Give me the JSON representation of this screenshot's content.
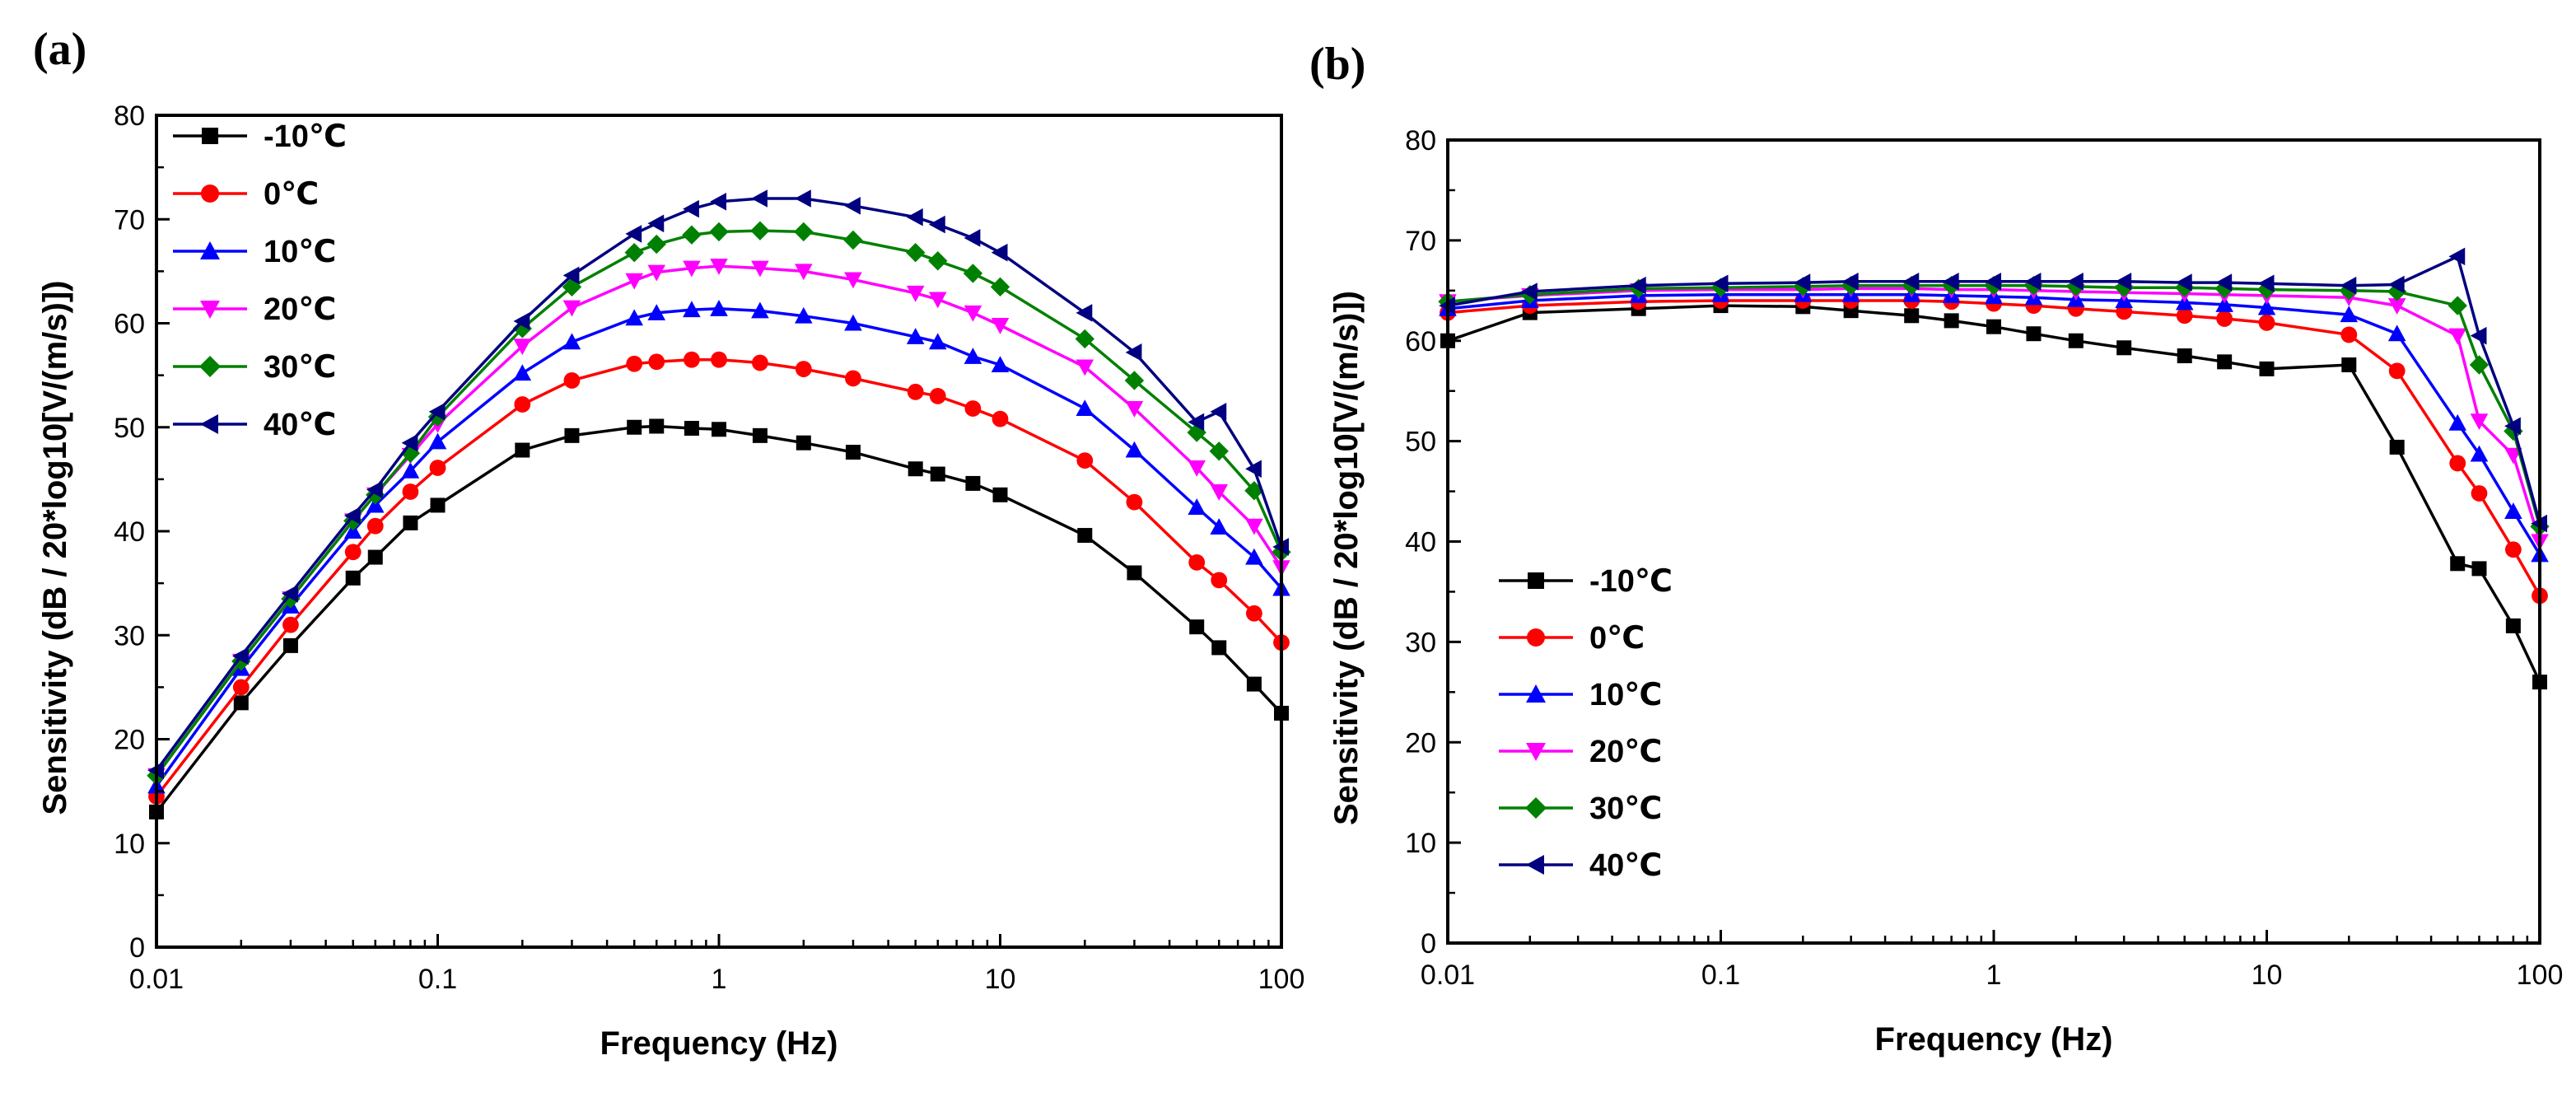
{
  "chart_data": [
    {
      "panel_label": "(a)",
      "type": "line",
      "xlabel": "Frequency (Hz)",
      "ylabel": "Sensitivity (dB / 20*log10[V/(m/s)])",
      "xscale": "log",
      "xlim": [
        0.01,
        100
      ],
      "ylim": [
        0,
        80
      ],
      "x_ticks": [
        0.01,
        0.1,
        1,
        10,
        100
      ],
      "x_tick_labels": [
        "0.01",
        "0.1",
        "1",
        "10",
        "100"
      ],
      "y_ticks": [
        0,
        10,
        20,
        30,
        40,
        50,
        60,
        70,
        80
      ],
      "y_tick_labels": [
        "0",
        "10",
        "20",
        "30",
        "40",
        "50",
        "60",
        "70",
        "80"
      ],
      "legend_position": "top-left",
      "x": [
        0.01,
        0.02,
        0.03,
        0.05,
        0.06,
        0.08,
        0.1,
        0.2,
        0.3,
        0.5,
        0.6,
        0.8,
        1,
        1.4,
        2,
        3,
        5,
        6,
        8,
        10,
        20,
        30,
        50,
        60,
        80,
        100
      ],
      "series": [
        {
          "name": "-10℃",
          "color": "#000000",
          "marker": "square",
          "values": [
            13,
            23.5,
            29,
            35.5,
            37.5,
            40.8,
            42.5,
            47.8,
            49.2,
            50,
            50.1,
            49.9,
            49.8,
            49.2,
            48.5,
            47.6,
            46,
            45.5,
            44.6,
            43.5,
            39.6,
            36,
            30.8,
            28.8,
            25.3,
            22.5
          ]
        },
        {
          "name": "0℃",
          "color": "#ff0000",
          "marker": "circle",
          "values": [
            14.5,
            25,
            31,
            38,
            40.5,
            43.8,
            46.1,
            52.2,
            54.5,
            56.1,
            56.3,
            56.5,
            56.5,
            56.2,
            55.6,
            54.7,
            53.4,
            53,
            51.8,
            50.8,
            46.8,
            42.8,
            37,
            35.3,
            32.1,
            29.3
          ]
        },
        {
          "name": "10℃",
          "color": "#0000ff",
          "marker": "triangle-up",
          "values": [
            15.5,
            26.8,
            32.8,
            40,
            42.5,
            45.8,
            48.6,
            55.2,
            58.2,
            60.5,
            61,
            61.3,
            61.4,
            61.2,
            60.7,
            60,
            58.7,
            58.2,
            56.8,
            56,
            51.8,
            47.8,
            42.3,
            40.4,
            37.5,
            34.5
          ]
        },
        {
          "name": "20℃",
          "color": "#ff00ff",
          "marker": "triangle-down",
          "values": [
            16.5,
            27.5,
            33.5,
            41,
            43.5,
            47.3,
            50.3,
            57.8,
            61.5,
            64.1,
            64.9,
            65.3,
            65.5,
            65.3,
            65,
            64.2,
            62.9,
            62.3,
            61,
            59.8,
            55.8,
            51.8,
            46.1,
            43.8,
            40.5,
            36.5
          ]
        },
        {
          "name": "30℃",
          "color": "#008000",
          "marker": "diamond",
          "values": [
            16.5,
            27.5,
            33.5,
            41,
            43.5,
            47.5,
            51,
            59.5,
            63.5,
            66.8,
            67.6,
            68.5,
            68.8,
            68.9,
            68.8,
            68,
            66.8,
            66,
            64.8,
            63.5,
            58.5,
            54.5,
            49.5,
            47.7,
            43.9,
            38
          ]
        },
        {
          "name": "40℃",
          "color": "#000080",
          "marker": "triangle-left",
          "values": [
            17,
            28,
            34,
            41.5,
            44,
            48.5,
            51.5,
            60.2,
            64.6,
            68.6,
            69.6,
            71,
            71.7,
            72,
            72,
            71.3,
            70.2,
            69.5,
            68.2,
            66.8,
            61,
            57.2,
            50.5,
            51.5,
            46,
            38.5
          ]
        }
      ]
    },
    {
      "panel_label": "(b)",
      "type": "line",
      "xlabel": "Frequency (Hz)",
      "ylabel": "Sensitivity (dB / 20*log10[V/(m/s)])",
      "xscale": "log",
      "xlim": [
        0.01,
        100
      ],
      "ylim": [
        0,
        80
      ],
      "x_ticks": [
        0.01,
        0.1,
        1,
        10,
        100
      ],
      "x_tick_labels": [
        "0.01",
        "0.1",
        "1",
        "10",
        "100"
      ],
      "y_ticks": [
        0,
        10,
        20,
        30,
        40,
        50,
        60,
        70,
        80
      ],
      "y_tick_labels": [
        "0",
        "10",
        "20",
        "30",
        "40",
        "50",
        "60",
        "70",
        "80"
      ],
      "legend_position": "bottom-left",
      "x": [
        0.01,
        0.02,
        0.05,
        0.1,
        0.2,
        0.3,
        0.5,
        0.7,
        1,
        1.4,
        2,
        3,
        5,
        7,
        10,
        20,
        30,
        50,
        60,
        80,
        100
      ],
      "series": [
        {
          "name": "-10℃",
          "color": "#000000",
          "marker": "square",
          "values": [
            60,
            62.8,
            63.2,
            63.5,
            63.4,
            63,
            62.5,
            62,
            61.4,
            60.7,
            60,
            59.3,
            58.5,
            57.9,
            57.2,
            57.6,
            49.4,
            37.8,
            37.3,
            31.6,
            26
          ]
        },
        {
          "name": "0℃",
          "color": "#ff0000",
          "marker": "circle",
          "values": [
            62.8,
            63.5,
            63.9,
            64,
            64,
            64,
            64,
            63.9,
            63.7,
            63.5,
            63.2,
            62.9,
            62.5,
            62.2,
            61.8,
            60.6,
            57,
            47.8,
            44.8,
            39.2,
            34.6
          ]
        },
        {
          "name": "10℃",
          "color": "#0000ff",
          "marker": "triangle-up",
          "values": [
            63.2,
            64,
            64.5,
            64.6,
            64.6,
            64.6,
            64.6,
            64.5,
            64.4,
            64.3,
            64.1,
            64,
            63.8,
            63.6,
            63.3,
            62.6,
            60.7,
            51.8,
            48.7,
            43,
            38.7
          ]
        },
        {
          "name": "20℃",
          "color": "#ff00ff",
          "marker": "triangle-down",
          "values": [
            63.9,
            64.5,
            65,
            65.1,
            65.1,
            65.2,
            65.2,
            65.1,
            65.1,
            65,
            64.9,
            64.8,
            64.7,
            64.6,
            64.5,
            64.3,
            63.5,
            60.5,
            52,
            48.6,
            40
          ]
        },
        {
          "name": "30℃",
          "color": "#008000",
          "marker": "diamond",
          "values": [
            63.9,
            64.6,
            65.2,
            65.3,
            65.4,
            65.5,
            65.5,
            65.5,
            65.5,
            65.5,
            65.4,
            65.3,
            65.3,
            65.2,
            65.1,
            65,
            64.9,
            63.5,
            57.6,
            51,
            41.5
          ]
        },
        {
          "name": "40℃",
          "color": "#000080",
          "marker": "triangle-left",
          "values": [
            63.5,
            64.9,
            65.5,
            65.7,
            65.8,
            65.9,
            65.9,
            65.9,
            65.9,
            65.9,
            65.9,
            65.9,
            65.8,
            65.8,
            65.7,
            65.5,
            65.6,
            68.4,
            60.5,
            51.5,
            41.8
          ]
        }
      ]
    }
  ]
}
